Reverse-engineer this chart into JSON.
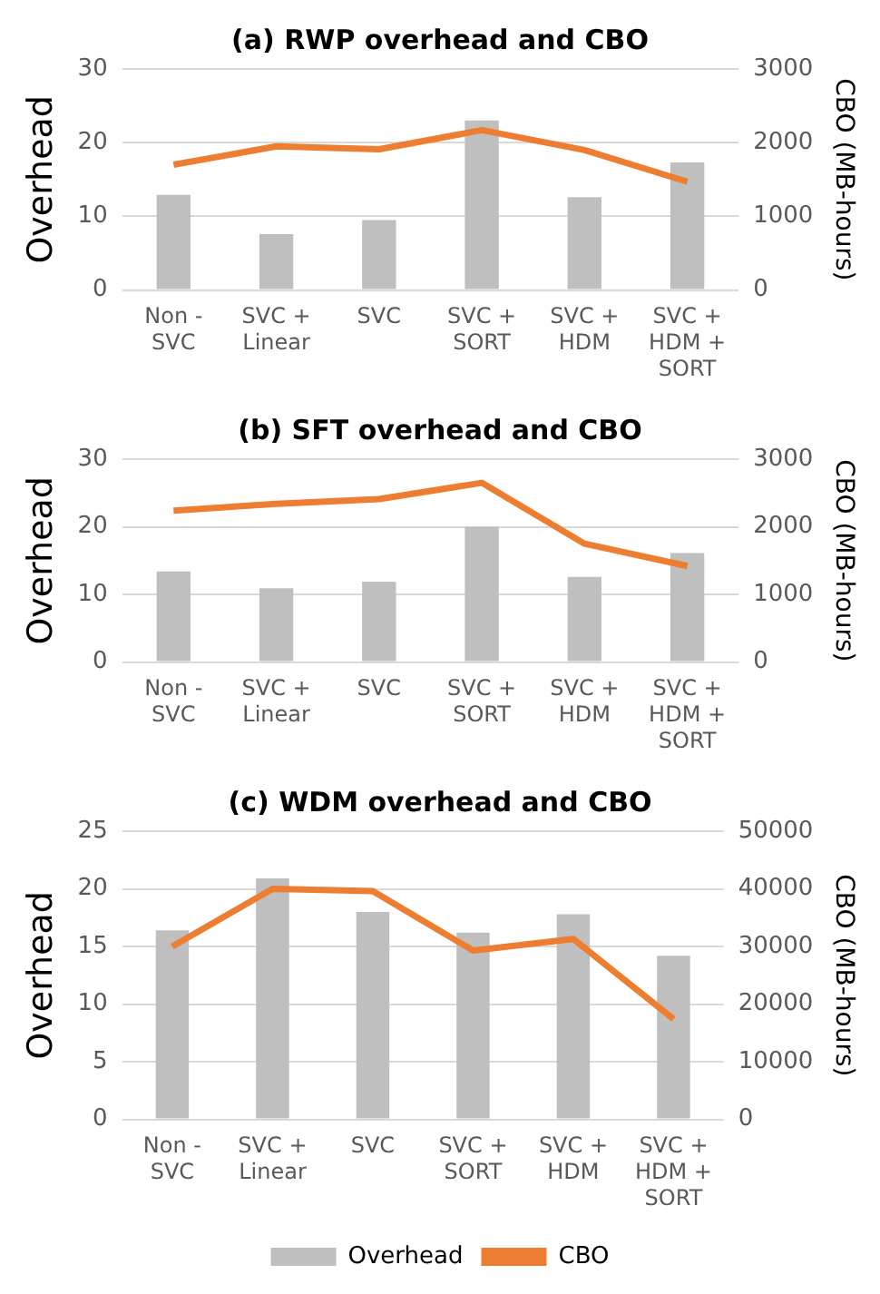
{
  "chart_data": [
    {
      "type": "bar",
      "title": "(a) RWP overhead and CBO",
      "ylabel": "Overhead",
      "y2label": "CBO (MB-hours)",
      "categories": [
        "Non - SVC",
        "SVC + Linear",
        "SVC",
        "SVC + SORT",
        "SVC + HDM",
        "SVC + HDM + SORT"
      ],
      "series": [
        {
          "color": "#bfbfbf",
          "values": [
            12.9,
            7.6,
            9.5,
            23,
            12.6,
            17.3
          ]
        },
        {
          "type": "line",
          "axis": "y2",
          "color": "#ed7d31",
          "values": [
            1700,
            1950,
            1910,
            2170,
            1900,
            1470
          ]
        }
      ],
      "ylim": [
        0,
        30
      ],
      "yticks": [
        0,
        10,
        20,
        30
      ],
      "y2lim": [
        0,
        3000
      ],
      "y2ticks": [
        0,
        1000,
        2000,
        3000
      ],
      "grid": "y",
      "legend": false
    },
    {
      "type": "bar",
      "title": "(b) SFT overhead and CBO",
      "ylabel": "Overhead",
      "y2label": "CBO (MB-hours)",
      "categories": [
        "Non - SVC",
        "SVC + Linear",
        "SVC",
        "SVC + SORT",
        "SVC + HDM",
        "SVC + HDM + SORT"
      ],
      "series": [
        {
          "color": "#bfbfbf",
          "values": [
            13.4,
            10.9,
            11.9,
            20,
            12.6,
            16.1
          ]
        },
        {
          "type": "line",
          "axis": "y2",
          "color": "#ed7d31",
          "values": [
            2240,
            2340,
            2410,
            2650,
            1750,
            1420
          ]
        }
      ],
      "ylim": [
        0,
        30
      ],
      "yticks": [
        0,
        10,
        20,
        30
      ],
      "y2lim": [
        0,
        3000
      ],
      "y2ticks": [
        0,
        1000,
        2000,
        3000
      ],
      "grid": "y",
      "legend": false
    },
    {
      "type": "bar",
      "title": "(c) WDM overhead and CBO",
      "ylabel": "Overhead",
      "y2label": "CBO (MB-hours)",
      "categories": [
        "Non - SVC",
        "SVC + Linear",
        "SVC",
        "SVC + SORT",
        "SVC + HDM",
        "SVC + HDM + SORT"
      ],
      "series": [
        {
          "name": "Overhead",
          "color": "#bfbfbf",
          "values": [
            16.4,
            20.9,
            18,
            16.2,
            17.8,
            14.2
          ]
        },
        {
          "name": "CBO",
          "type": "line",
          "axis": "y2",
          "color": "#ed7d31",
          "values": [
            30000,
            40000,
            39600,
            29300,
            31300,
            17400
          ]
        }
      ],
      "ylim": [
        0,
        25
      ],
      "yticks": [
        0,
        5,
        10,
        15,
        20,
        25
      ],
      "y2lim": [
        0,
        50000
      ],
      "y2ticks": [
        0,
        10000,
        20000,
        30000,
        40000,
        50000
      ],
      "grid": "y",
      "legend": "bottom"
    }
  ]
}
